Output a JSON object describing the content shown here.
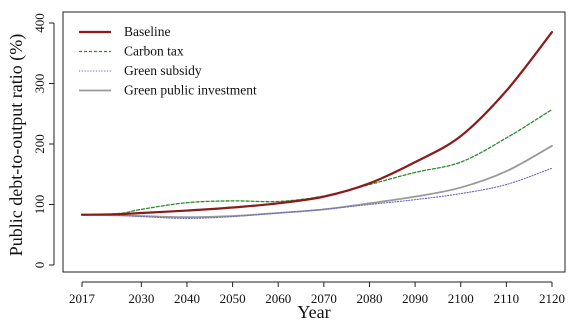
{
  "chart_data": {
    "type": "line",
    "title": "",
    "xlabel": "Year",
    "ylabel": "Public debt-to-output ratio (%)",
    "xlim": [
      2017,
      2120
    ],
    "ylim": [
      0,
      400
    ],
    "x_ticks": [
      2017,
      2030,
      2040,
      2050,
      2060,
      2070,
      2080,
      2090,
      2100,
      2110,
      2120
    ],
    "y_ticks": [
      0,
      100,
      200,
      300,
      400
    ],
    "grid": false,
    "legend_position": "top-left",
    "series": [
      {
        "name": "Baseline",
        "color": "#8b1a1a",
        "style": "solid",
        "x": [
          2017,
          2025,
          2030,
          2040,
          2050,
          2060,
          2070,
          2080,
          2090,
          2100,
          2110,
          2120
        ],
        "y": [
          83,
          84,
          86,
          90,
          95,
          102,
          113,
          135,
          170,
          213,
          288,
          385
        ]
      },
      {
        "name": "Carbon tax",
        "color": "#2e8b2e",
        "style": "dashed",
        "x": [
          2017,
          2025,
          2030,
          2040,
          2050,
          2060,
          2070,
          2080,
          2090,
          2100,
          2110,
          2120
        ],
        "y": [
          83,
          85,
          92,
          103,
          106,
          105,
          114,
          133,
          153,
          170,
          210,
          257
        ]
      },
      {
        "name": "Green subsidy",
        "color": "#6a6ab8",
        "style": "dotted",
        "x": [
          2017,
          2025,
          2030,
          2040,
          2050,
          2060,
          2070,
          2080,
          2090,
          2100,
          2110,
          2120
        ],
        "y": [
          83,
          82,
          80,
          77,
          80,
          86,
          92,
          100,
          108,
          118,
          133,
          160
        ]
      },
      {
        "name": "Green public investment",
        "color": "#9a9a9a",
        "style": "solid",
        "x": [
          2017,
          2025,
          2030,
          2040,
          2050,
          2060,
          2070,
          2080,
          2090,
          2100,
          2110,
          2120
        ],
        "y": [
          83,
          82,
          81,
          79,
          81,
          86,
          92,
          102,
          113,
          128,
          155,
          197
        ]
      }
    ]
  }
}
